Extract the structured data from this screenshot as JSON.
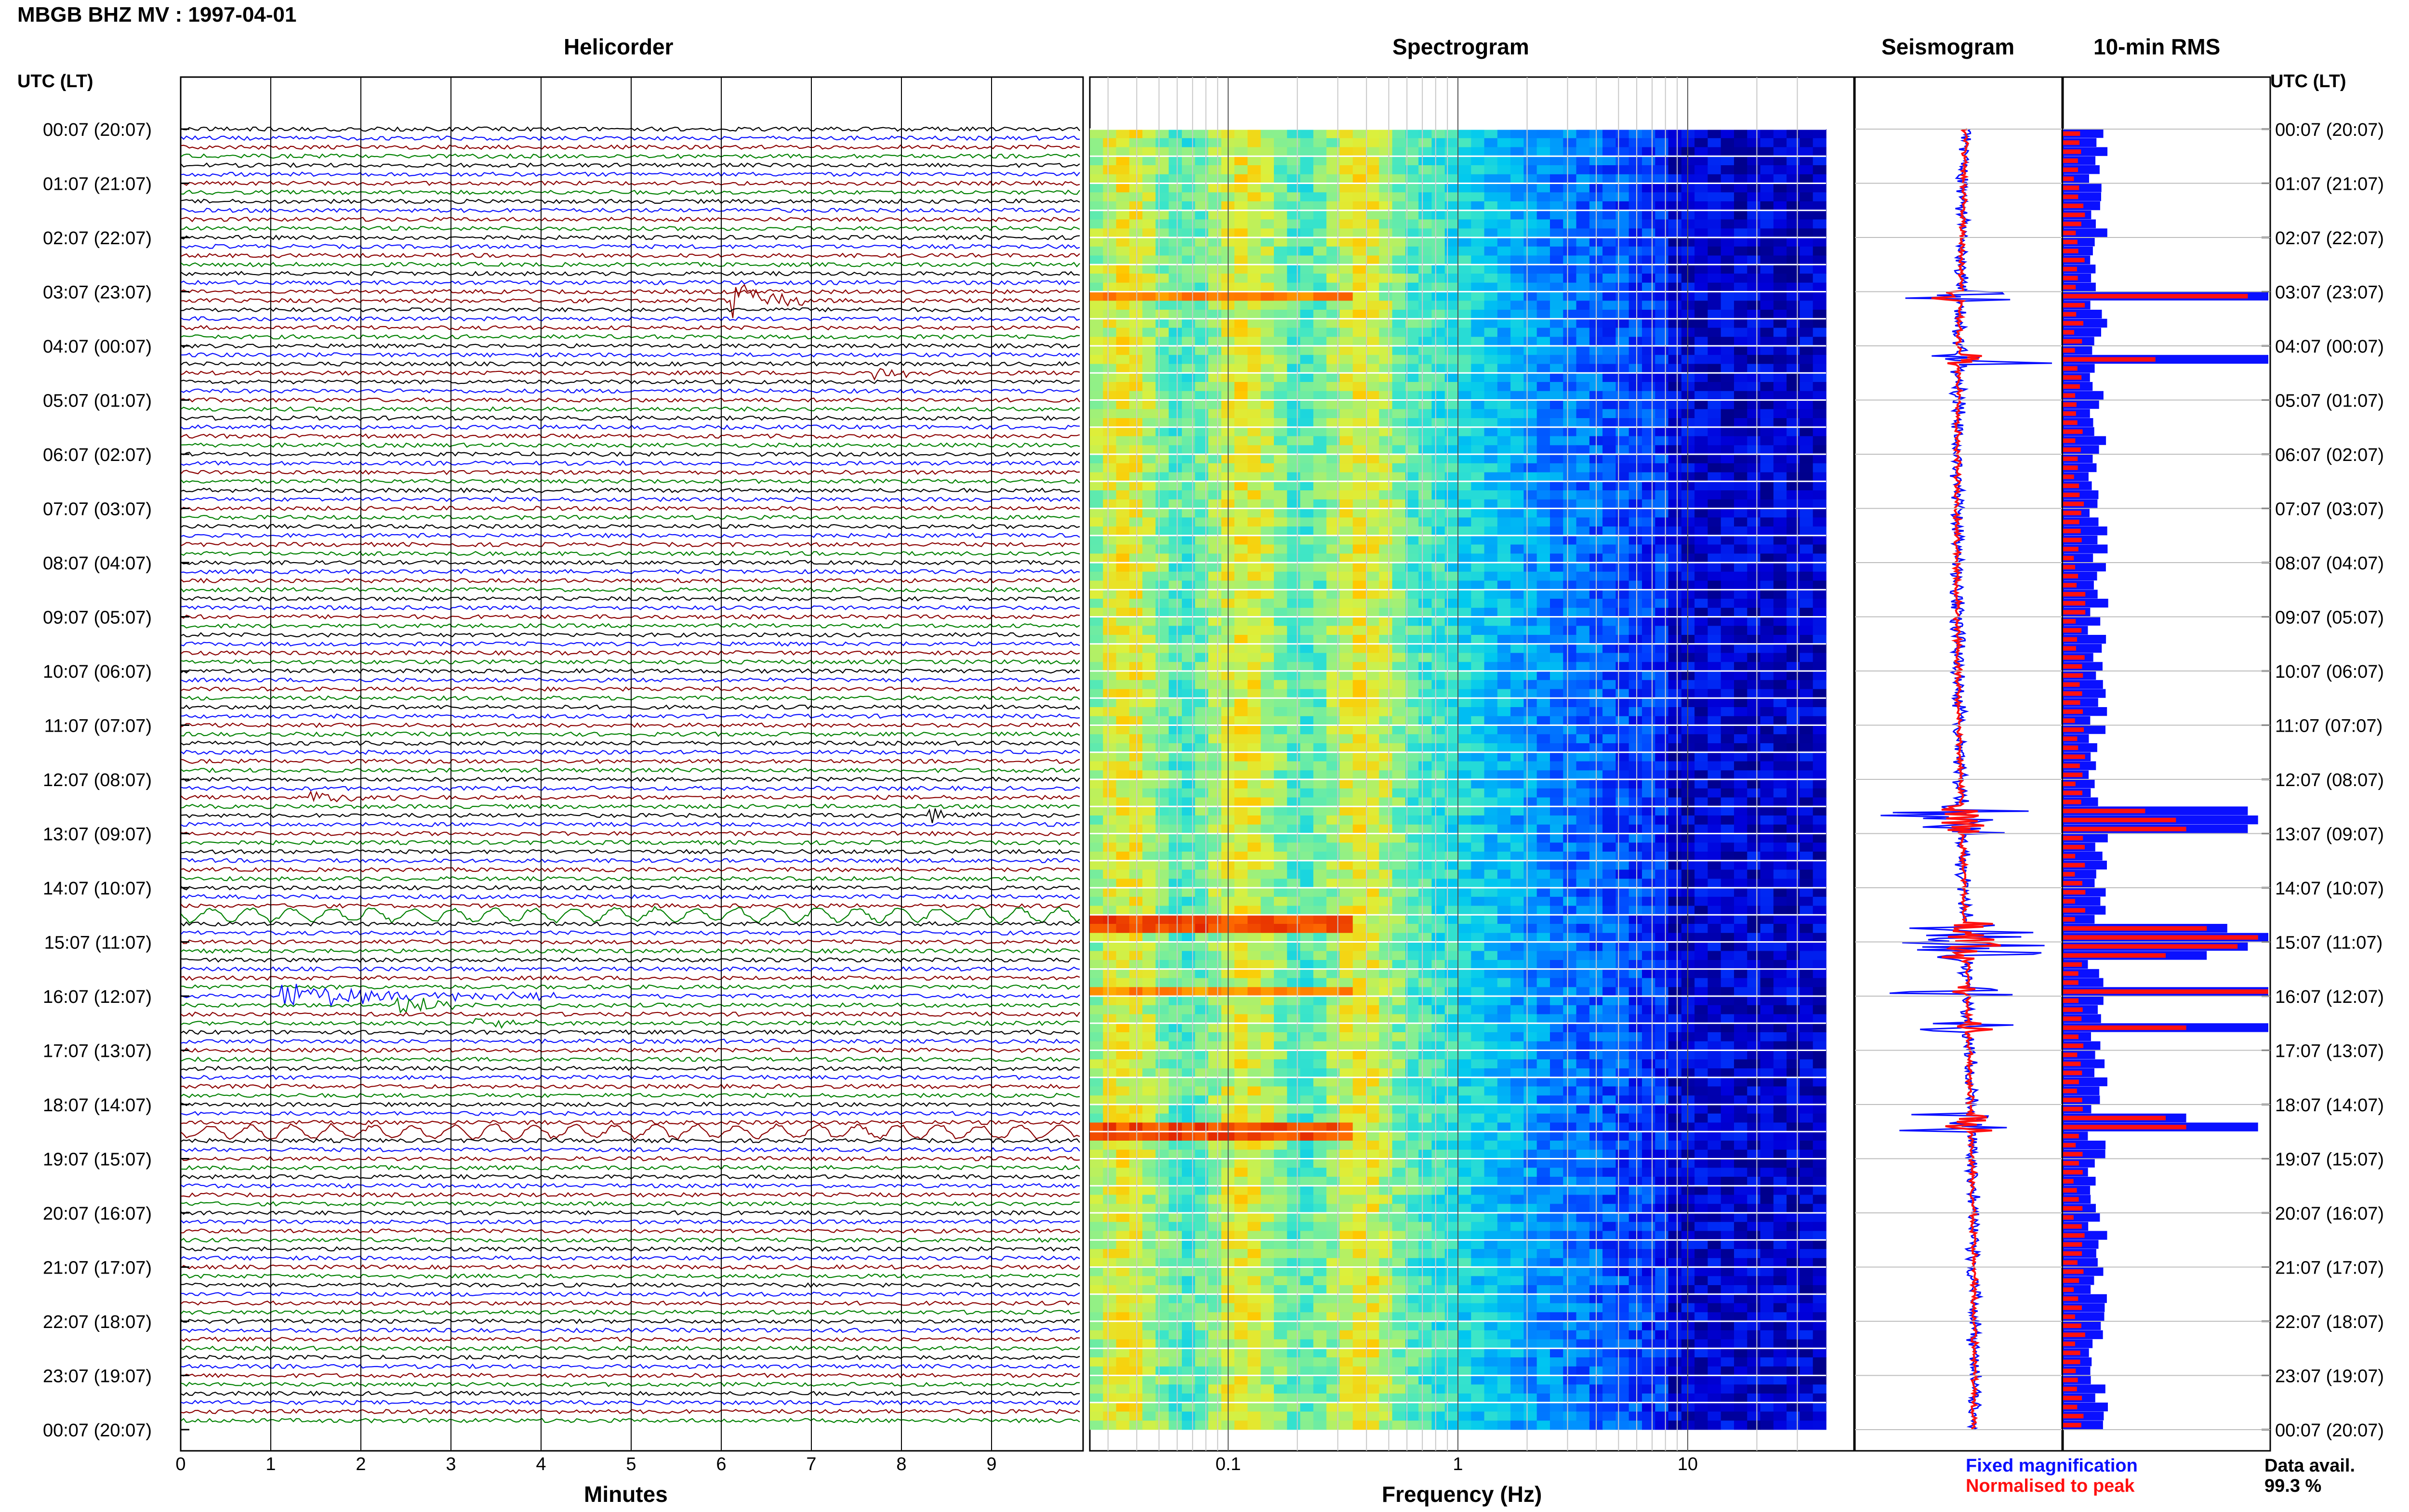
{
  "header": {
    "station_title": "MBGB BHZ MV : 1997-04-01",
    "helicorder_title": "Helicorder",
    "spectrogram_title": "Spectrogram",
    "seismogram_title": "Seismogram",
    "rms_title": "10-min RMS",
    "utc_lt_left": "UTC (LT)",
    "utc_lt_right": "UTC (LT)"
  },
  "footer": {
    "minutes_label": "Minutes",
    "frequency_label": "Frequency (Hz)",
    "legend_fixed": "Fixed magnification",
    "legend_normalised": "Normalised to peak",
    "data_avail_label": "Data avail.",
    "data_avail_value": "99.3 %"
  },
  "colors": {
    "trace_colors": [
      "#000000",
      "#0a10ff",
      "#8b0000",
      "#008000"
    ],
    "fixed": "#0a10ff",
    "normalised": "#ff1010",
    "spectro_low": "#00008b",
    "spectro_high": "#ff2000"
  },
  "chart_data": [
    {
      "type": "line",
      "name": "helicorder",
      "x_ticks": [
        "0",
        "1",
        "2",
        "3",
        "4",
        "5",
        "6",
        "7",
        "8",
        "9"
      ],
      "xlim": [
        0,
        10
      ],
      "xlabel": "Minutes",
      "rows_per_hour": 6,
      "time_labels": [
        "00:07 (20:07)",
        "01:07 (21:07)",
        "02:07 (22:07)",
        "03:07 (23:07)",
        "04:07 (00:07)",
        "05:07 (01:07)",
        "06:07 (02:07)",
        "07:07 (03:07)",
        "08:07 (04:07)",
        "09:07 (05:07)",
        "10:07 (06:07)",
        "11:07 (07:07)",
        "12:07 (08:07)",
        "13:07 (09:07)",
        "14:07 (10:07)",
        "15:07 (11:07)",
        "16:07 (12:07)",
        "17:07 (13:07)",
        "18:07 (14:07)",
        "19:07 (15:07)",
        "20:07 (16:07)",
        "21:07 (17:07)",
        "22:07 (18:07)",
        "23:07 (19:07)",
        "00:07 (20:07)"
      ],
      "events": [
        {
          "row": 19,
          "start_min": 6.1,
          "end_min": 6.9,
          "amp": 3.2,
          "color": 2
        },
        {
          "row": 27,
          "start_min": 7.7,
          "end_min": 8.5,
          "amp": 1.0,
          "color": 2
        },
        {
          "row": 26,
          "start_min": 5.6,
          "end_min": 5.8,
          "amp": 0.6,
          "color": 0
        },
        {
          "row": 74,
          "start_min": 1.4,
          "end_min": 2.6,
          "amp": 1.0,
          "color": 2
        },
        {
          "row": 76,
          "start_min": 8.3,
          "end_min": 8.9,
          "amp": 1.0,
          "color": 0
        },
        {
          "row": 96,
          "start_min": 1.1,
          "end_min": 4.2,
          "amp": 1.6,
          "color": 1
        },
        {
          "row": 97,
          "start_min": 2.4,
          "end_min": 4.5,
          "amp": 1.0,
          "color": 3
        },
        {
          "row": 99,
          "start_min": 3.2,
          "end_min": 4.2,
          "amp": 1.0,
          "color": 3
        },
        {
          "row": 87,
          "start_min": 0.0,
          "end_min": 10.0,
          "amp": 0.7,
          "color": 3
        },
        {
          "row": 111,
          "start_min": 0.0,
          "end_min": 10.0,
          "amp": 0.7,
          "color": 2
        }
      ]
    },
    {
      "type": "heatmap",
      "name": "spectrogram",
      "x_scale": "log",
      "x_ticks": [
        "0.1",
        "1",
        "10"
      ],
      "xlabel": "Frequency (Hz)"
    },
    {
      "type": "line",
      "name": "seismogram",
      "series": [
        {
          "name": "Fixed magnification"
        },
        {
          "name": "Normalised to peak"
        }
      ]
    },
    {
      "type": "bar",
      "name": "rms",
      "title": "10-min RMS",
      "series": [
        {
          "name": "Fixed magnification"
        },
        {
          "name": "Normalised to peak"
        }
      ],
      "spikes": [
        {
          "row": 18,
          "fixed": 1.0,
          "norm": 0.9
        },
        {
          "row": 25,
          "fixed": 1.0,
          "norm": 0.45
        },
        {
          "row": 75,
          "fixed": 0.9,
          "norm": 0.4
        },
        {
          "row": 76,
          "fixed": 0.95,
          "norm": 0.55
        },
        {
          "row": 77,
          "fixed": 0.9,
          "norm": 0.6
        },
        {
          "row": 88,
          "fixed": 0.8,
          "norm": 0.7
        },
        {
          "row": 89,
          "fixed": 1.0,
          "norm": 0.95
        },
        {
          "row": 90,
          "fixed": 0.9,
          "norm": 0.85
        },
        {
          "row": 91,
          "fixed": 0.7,
          "norm": 0.5
        },
        {
          "row": 95,
          "fixed": 1.0,
          "norm": 1.0
        },
        {
          "row": 99,
          "fixed": 1.0,
          "norm": 0.6
        },
        {
          "row": 109,
          "fixed": 0.6,
          "norm": 0.5
        },
        {
          "row": 110,
          "fixed": 0.95,
          "norm": 0.6
        }
      ]
    }
  ]
}
